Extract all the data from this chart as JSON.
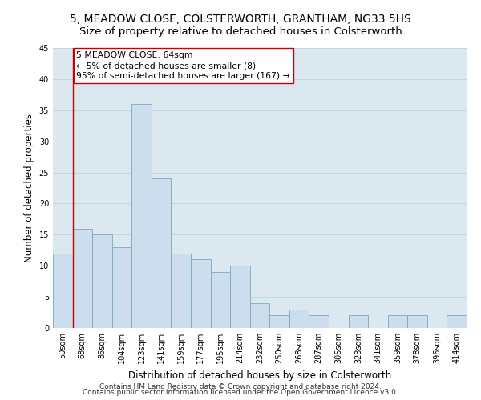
{
  "title_line1": "5, MEADOW CLOSE, COLSTERWORTH, GRANTHAM, NG33 5HS",
  "title_line2": "Size of property relative to detached houses in Colsterworth",
  "xlabel": "Distribution of detached houses by size in Colsterworth",
  "ylabel": "Number of detached properties",
  "categories": [
    "50sqm",
    "68sqm",
    "86sqm",
    "104sqm",
    "123sqm",
    "141sqm",
    "159sqm",
    "177sqm",
    "195sqm",
    "214sqm",
    "232sqm",
    "250sqm",
    "268sqm",
    "287sqm",
    "305sqm",
    "323sqm",
    "341sqm",
    "359sqm",
    "378sqm",
    "396sqm",
    "414sqm"
  ],
  "values": [
    12,
    16,
    15,
    13,
    36,
    24,
    12,
    11,
    9,
    10,
    4,
    2,
    3,
    2,
    0,
    2,
    0,
    2,
    2,
    0,
    2
  ],
  "bar_color": "#ccdded",
  "bar_edge_color": "#7aaabb",
  "vline_color": "#cc0000",
  "vline_x": 0.5,
  "annotation_text_line1": "5 MEADOW CLOSE: 64sqm",
  "annotation_text_line2": "← 5% of detached houses are smaller (8)",
  "annotation_text_line3": "95% of semi-detached houses are larger (167) →",
  "annotation_box_facecolor": "#ffffff",
  "annotation_box_edgecolor": "#cc0000",
  "ylim": [
    0,
    45
  ],
  "yticks": [
    0,
    5,
    10,
    15,
    20,
    25,
    30,
    35,
    40,
    45
  ],
  "grid_color": "#c8d4de",
  "bg_color": "#dce8f0",
  "footer_line1": "Contains HM Land Registry data © Crown copyright and database right 2024.",
  "footer_line2": "Contains public sector information licensed under the Open Government Licence v3.0.",
  "title_fontsize": 10,
  "subtitle_fontsize": 9.5,
  "axis_label_fontsize": 8.5,
  "tick_fontsize": 7,
  "annotation_fontsize": 7.8,
  "footer_fontsize": 6.5
}
